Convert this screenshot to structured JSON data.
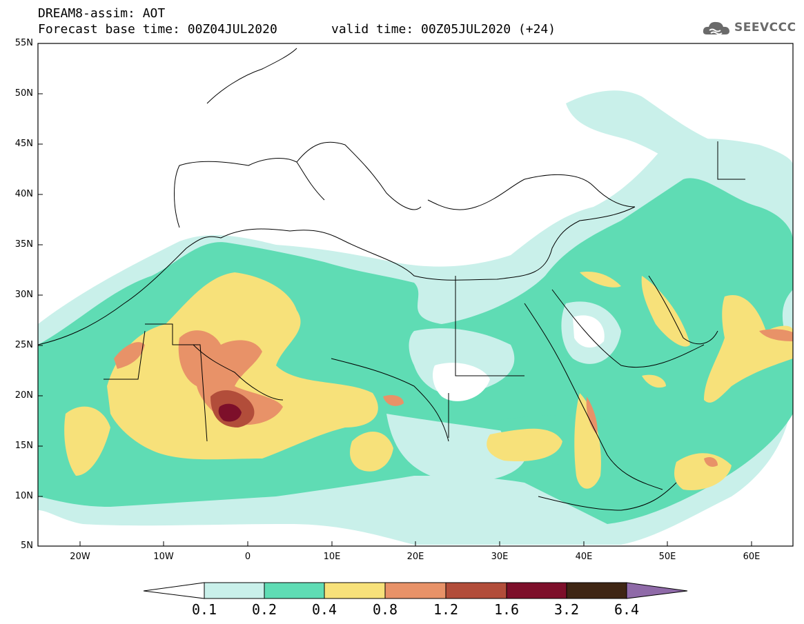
{
  "header": {
    "title": "DREAM8-assim: AOT",
    "base_time": "Forecast base time: 00Z04JUL2020",
    "valid_time": "valid time: 00Z05JUL2020 (+24)",
    "logo_text": "SEEVCCC"
  },
  "map": {
    "lat_labels": [
      "55N",
      "50N",
      "45N",
      "40N",
      "35N",
      "30N",
      "25N",
      "20N",
      "15N",
      "10N",
      "5N"
    ],
    "lon_labels": [
      "20W",
      "10W",
      "0",
      "10E",
      "20E",
      "30E",
      "40E",
      "50E",
      "60E"
    ],
    "extent": {
      "lon_min": -25,
      "lon_max": 65,
      "lat_min": 5,
      "lat_max": 55
    }
  },
  "colorbar": {
    "levels": [
      "0.1",
      "0.2",
      "0.4",
      "0.8",
      "1.2",
      "1.6",
      "3.2",
      "6.4"
    ],
    "colors": [
      "#ffffff",
      "#c9f0ea",
      "#5fdcb4",
      "#f7e17a",
      "#e89268",
      "#b24d3a",
      "#7d0f2a",
      "#3f2614",
      "#8f6aa8"
    ]
  },
  "colors": {
    "aot_0_1": "#c9f0ea",
    "aot_0_2": "#5fdcb4",
    "aot_0_4": "#f7e17a",
    "aot_0_8": "#e89268",
    "aot_1_2": "#b24d3a",
    "aot_1_6": "#7d0f2a"
  }
}
